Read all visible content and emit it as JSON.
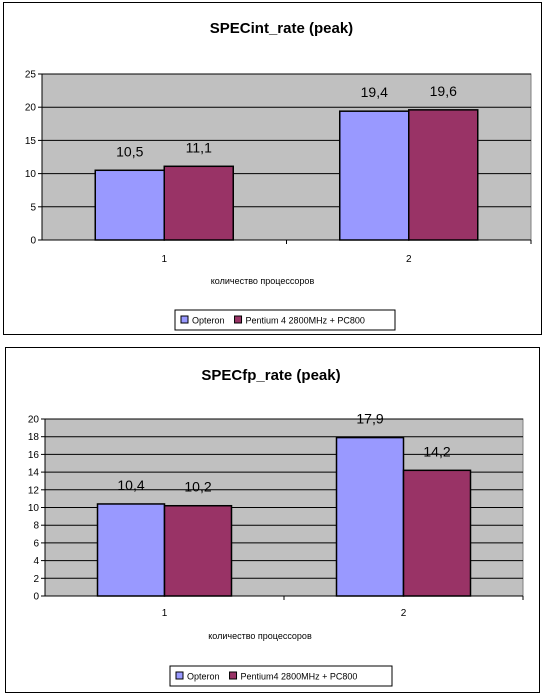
{
  "chart_data": [
    {
      "type": "bar",
      "title": "SPECint_rate (peak)",
      "xlabel": "количество процессоров",
      "ylabel": "",
      "categories": [
        "1",
        "2"
      ],
      "ylim": [
        0,
        25
      ],
      "yticks": [
        0,
        5,
        10,
        15,
        20,
        25
      ],
      "grid": true,
      "legend_position": "bottom",
      "series": [
        {
          "name": "Opteron",
          "values": [
            10.5,
            19.4
          ],
          "labels": [
            "10,5",
            "19,4"
          ],
          "color": "#9999ff"
        },
        {
          "name": "Pentium 4 2800MHz + PC800",
          "values": [
            11.1,
            19.6
          ],
          "labels": [
            "11,1",
            "19,6"
          ],
          "color": "#993366"
        }
      ]
    },
    {
      "type": "bar",
      "title": "SPECfp_rate (peak)",
      "xlabel": "количество процессоров",
      "ylabel": "",
      "categories": [
        "1",
        "2"
      ],
      "ylim": [
        0,
        20
      ],
      "yticks": [
        0,
        2,
        4,
        6,
        8,
        10,
        12,
        14,
        16,
        18,
        20
      ],
      "grid": true,
      "legend_position": "bottom",
      "series": [
        {
          "name": "Opteron",
          "values": [
            10.4,
            17.9
          ],
          "labels": [
            "10,4",
            "17,9"
          ],
          "color": "#9999ff"
        },
        {
          "name": "Pentium4 2800MHz + PC800",
          "values": [
            10.2,
            14.2
          ],
          "labels": [
            "10,2",
            "14,2"
          ],
          "color": "#993366"
        }
      ]
    }
  ]
}
